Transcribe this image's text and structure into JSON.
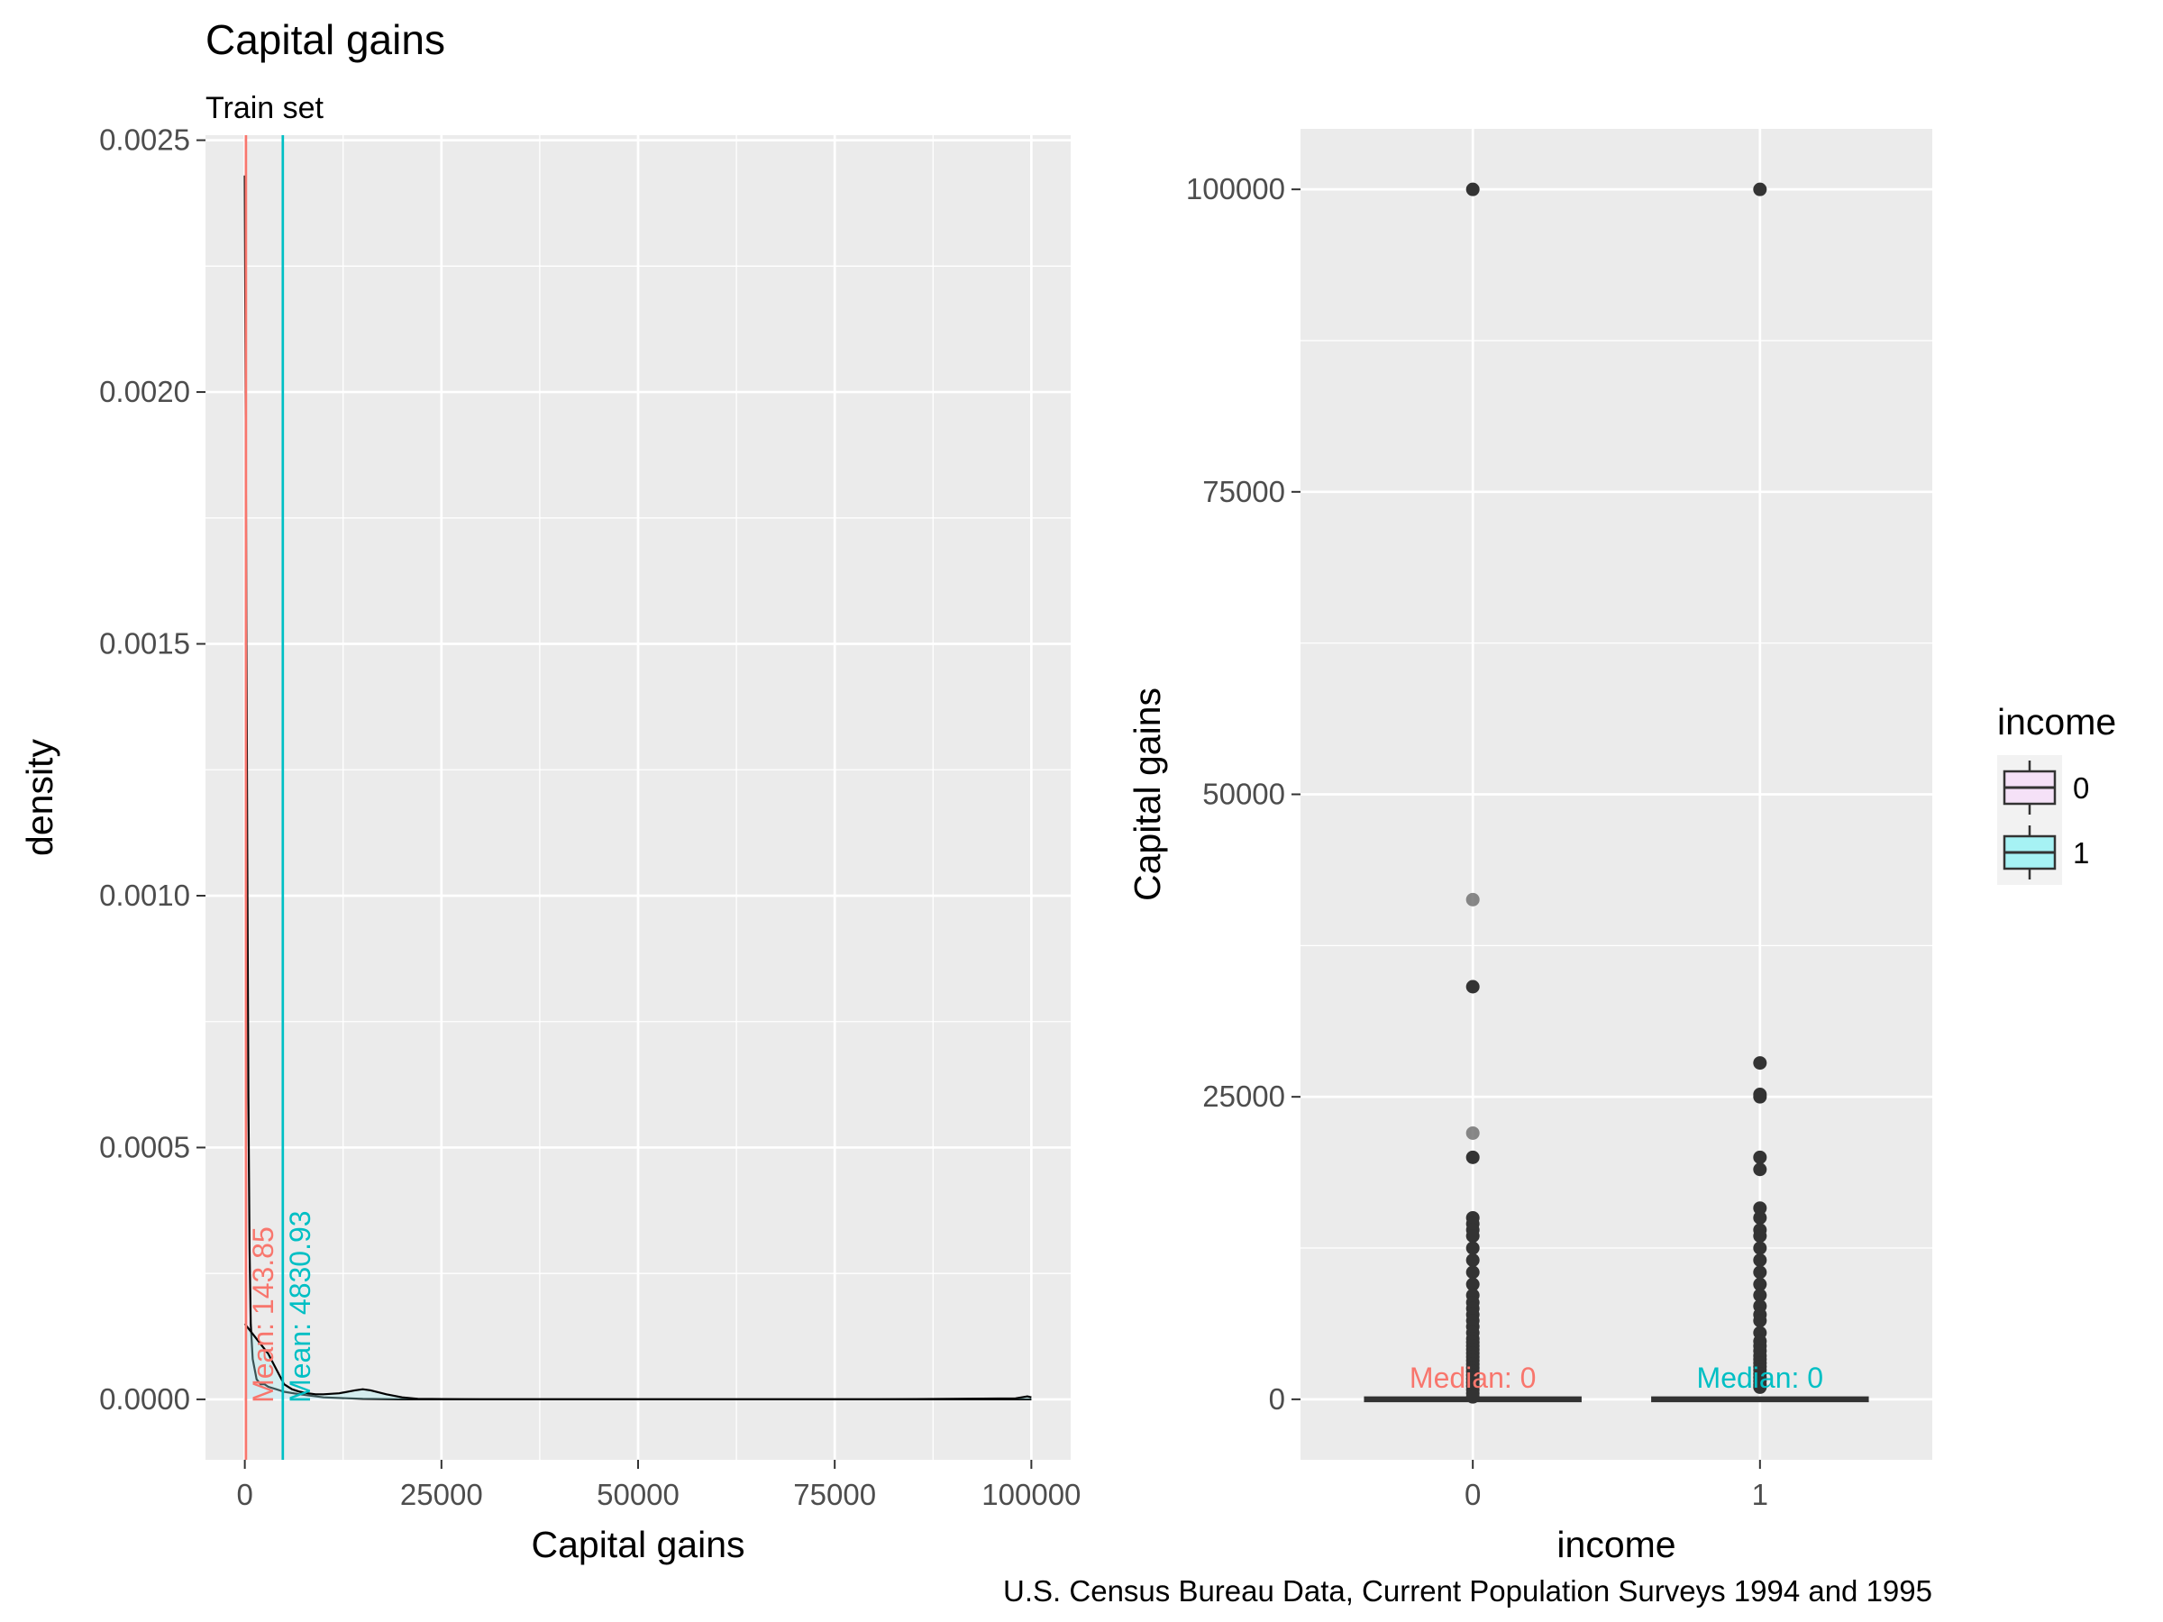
{
  "title": "Capital gains",
  "subtitle": "Train set",
  "caption": "U.S. Census Bureau Data, Current Population Surveys 1994 and 1995",
  "colors": {
    "panel_bg": "#EBEBEB",
    "grid": "#FFFFFF",
    "income_0": "#F8766D",
    "income_1": "#00BFC4",
    "income_0_fill": "#F5E1F7",
    "income_1_fill": "#A6F2F4",
    "line": "#000000",
    "tick_text": "#4D4D4D"
  },
  "chart_data": [
    {
      "type": "density",
      "xlabel": "Capital gains",
      "ylabel": "density",
      "xlim": [
        -5000,
        105000
      ],
      "ylim": [
        -0.00012,
        0.00251
      ],
      "xticks": [
        0,
        25000,
        50000,
        75000,
        100000
      ],
      "xtick_labels": [
        "0",
        "25000",
        "50000",
        "75000",
        "100000"
      ],
      "yticks": [
        0,
        0.0005,
        0.001,
        0.0015,
        0.002,
        0.0025
      ],
      "ytick_labels": [
        "0.0000",
        "0.0005",
        "0.0010",
        "0.0015",
        "0.0020",
        "0.0025"
      ],
      "grid": true,
      "series": [
        {
          "income": "0",
          "x": [
            0,
            150,
            300,
            450,
            600,
            750,
            1000,
            1500,
            2000,
            2500,
            3000,
            4000,
            5000,
            7000,
            10000,
            15000,
            20000,
            30000,
            50000,
            80000,
            99000,
            100000
          ],
          "y": [
            0.00243,
            0.0018,
            0.0011,
            0.0006,
            0.0003,
            0.00015,
            8e-05,
            4e-05,
            3e-05,
            3e-05,
            2.5e-05,
            2e-05,
            1.5e-05,
            1e-05,
            4e-06,
            1e-06,
            0,
            0,
            0,
            0,
            0,
            0
          ]
        },
        {
          "income": "1",
          "x": [
            0,
            500,
            1000,
            2000,
            3000,
            4000,
            5000,
            6000,
            7000,
            8000,
            9000,
            10000,
            12000,
            14000,
            15000,
            16000,
            18000,
            20000,
            22000,
            30000,
            50000,
            80000,
            98000,
            99500,
            100000
          ],
          "y": [
            0.00015,
            0.00014,
            0.00013,
            0.00011,
            9e-05,
            6e-05,
            3e-05,
            2e-05,
            1.5e-05,
            1.2e-05,
            1e-05,
            1e-05,
            1.2e-05,
            1.8e-05,
            2e-05,
            1.8e-05,
            1e-05,
            4e-06,
            1e-06,
            0,
            0,
            0,
            2e-06,
            6e-06,
            4e-06
          ]
        }
      ],
      "mean_lines": [
        {
          "income": "0",
          "value": 143.85,
          "label": "Mean: 143.85"
        },
        {
          "income": "1",
          "value": 4830.93,
          "label": "Mean: 4830.93"
        }
      ]
    },
    {
      "type": "boxplot",
      "xlabel": "income",
      "ylabel": "Capital gains",
      "categories": [
        "0",
        "1"
      ],
      "ylim": [
        -5000,
        105000
      ],
      "yticks": [
        0,
        25000,
        50000,
        75000,
        100000
      ],
      "ytick_labels": [
        "0",
        "25000",
        "50000",
        "75000",
        "100000"
      ],
      "grid": true,
      "boxes": [
        {
          "income": "0",
          "q1": 0,
          "median": 0,
          "q3": 0,
          "whisker_low": 0,
          "whisker_high": 0,
          "outliers": [
            100000,
            41300,
            34100,
            22000,
            20000,
            15000,
            14500,
            14000,
            13500,
            12500,
            11500,
            10500,
            9500,
            8600,
            8000,
            7500,
            7000,
            6500,
            6000,
            5500,
            5000,
            4700,
            4400,
            4100,
            3800,
            3500,
            3200,
            2900,
            2600,
            2300,
            2000,
            1700,
            1400,
            1100,
            800,
            500,
            200
          ],
          "median_label": "Median: 0"
        },
        {
          "income": "1",
          "q1": 0,
          "median": 0,
          "q3": 0,
          "whisker_low": 0,
          "whisker_high": 0,
          "outliers": [
            100000,
            27800,
            25200,
            25000,
            20000,
            19000,
            15800,
            15000,
            14000,
            13500,
            12500,
            11500,
            10500,
            9500,
            8600,
            7700,
            7000,
            6500,
            5500,
            4800,
            4400,
            4000,
            3600,
            3300,
            3000,
            2700,
            2400,
            2100,
            1800,
            1500,
            1200,
            1000
          ],
          "median_label": "Median: 0"
        }
      ],
      "legend": {
        "title": "income",
        "position": "right",
        "items": [
          "0",
          "1"
        ]
      }
    }
  ]
}
